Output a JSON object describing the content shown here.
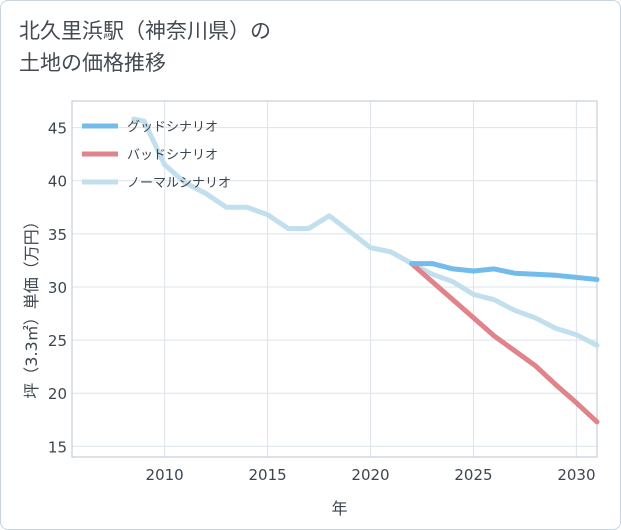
{
  "title_line1": "北久里浜駅（神奈川県）の",
  "title_line2": "土地の価格推移",
  "chart_data": {
    "type": "line",
    "title": "北久里浜駅（神奈川県）の土地の価格推移",
    "xlabel": "年",
    "ylabel": "坪（3.3㎡）単価（万円）",
    "xlim": [
      2005.5,
      2031
    ],
    "ylim": [
      14,
      47.5
    ],
    "xticks": [
      2010,
      2015,
      2020,
      2025,
      2030
    ],
    "yticks": [
      15,
      20,
      25,
      30,
      35,
      40,
      45
    ],
    "grid": true,
    "legend_position": "top-left",
    "series": [
      {
        "name": "グッドシナリオ",
        "color": "#72bcec",
        "x": [
          2022,
          2023,
          2024,
          2025,
          2026,
          2027,
          2028,
          2029,
          2030,
          2031
        ],
        "y": [
          32.2,
          32.2,
          31.7,
          31.5,
          31.7,
          31.3,
          31.2,
          31.1,
          30.9,
          30.7
        ]
      },
      {
        "name": "バッドシナリオ",
        "color": "#e0838a",
        "x": [
          2022,
          2023,
          2024,
          2025,
          2026,
          2027,
          2028,
          2029,
          2030,
          2031
        ],
        "y": [
          32.2,
          30.5,
          28.8,
          27.1,
          25.4,
          24.0,
          22.6,
          20.8,
          19.1,
          17.3
        ]
      },
      {
        "name": "ノーマルシナリオ",
        "color": "#c2dfee",
        "x": [
          2008.5,
          2009,
          2010,
          2011,
          2012,
          2013,
          2014,
          2015,
          2016,
          2017,
          2018,
          2019,
          2020,
          2021,
          2022,
          2023,
          2024,
          2025,
          2026,
          2027,
          2028,
          2029,
          2030,
          2031
        ],
        "y": [
          45.8,
          45.6,
          41.5,
          39.8,
          38.8,
          37.5,
          37.5,
          36.8,
          35.5,
          35.5,
          36.7,
          35.2,
          33.7,
          33.3,
          32.2,
          31.2,
          30.5,
          29.3,
          28.8,
          27.8,
          27.1,
          26.1,
          25.5,
          24.5
        ]
      }
    ]
  }
}
